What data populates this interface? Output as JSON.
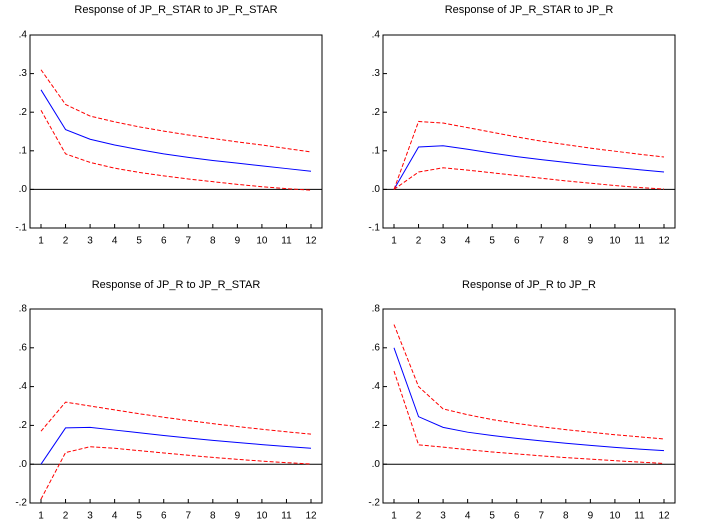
{
  "chart_data": [
    {
      "type": "line",
      "title": "Response of JP_R_STAR to JP_R_STAR",
      "categories": [
        "1",
        "2",
        "3",
        "4",
        "5",
        "6",
        "7",
        "8",
        "9",
        "10",
        "11",
        "12"
      ],
      "ylim": [
        -0.1,
        0.4
      ],
      "yticks": [
        {
          "value": -0.1,
          "label": "-.1"
        },
        {
          "value": 0,
          "label": ".0"
        },
        {
          "value": 0.1,
          "label": ".1"
        },
        {
          "value": 0.2,
          "label": ".2"
        },
        {
          "value": 0.3,
          "label": ".3"
        },
        {
          "value": 0.4,
          "label": ".4"
        }
      ],
      "series": [
        {
          "color": "#0000ff",
          "dashed": false,
          "values": [
            0.258,
            0.155,
            0.13,
            0.115,
            0.103,
            0.092,
            0.083,
            0.075,
            0.068,
            0.061,
            0.054,
            0.047
          ]
        },
        {
          "color": "#ff0000",
          "dashed": true,
          "values": [
            0.31,
            0.22,
            0.19,
            0.175,
            0.162,
            0.151,
            0.141,
            0.132,
            0.123,
            0.115,
            0.106,
            0.097
          ]
        },
        {
          "color": "#ff0000",
          "dashed": true,
          "values": [
            0.205,
            0.092,
            0.07,
            0.055,
            0.044,
            0.035,
            0.027,
            0.02,
            0.013,
            0.007,
            0.002,
            -0.002
          ]
        }
      ]
    },
    {
      "type": "line",
      "title": "Response of JP_R_STAR to JP_R",
      "categories": [
        "1",
        "2",
        "3",
        "4",
        "5",
        "6",
        "7",
        "8",
        "9",
        "10",
        "11",
        "12"
      ],
      "ylim": [
        -0.1,
        0.4
      ],
      "yticks": [
        {
          "value": -0.1,
          "label": "-.1"
        },
        {
          "value": 0,
          "label": ".0"
        },
        {
          "value": 0.1,
          "label": ".1"
        },
        {
          "value": 0.2,
          "label": ".2"
        },
        {
          "value": 0.3,
          "label": ".3"
        },
        {
          "value": 0.4,
          "label": ".4"
        }
      ],
      "series": [
        {
          "color": "#0000ff",
          "dashed": false,
          "values": [
            0,
            0.11,
            0.113,
            0.104,
            0.094,
            0.085,
            0.077,
            0.07,
            0.063,
            0.057,
            0.051,
            0.045
          ]
        },
        {
          "color": "#ff0000",
          "dashed": true,
          "values": [
            0,
            0.176,
            0.172,
            0.16,
            0.148,
            0.136,
            0.125,
            0.116,
            0.107,
            0.099,
            0.091,
            0.084
          ]
        },
        {
          "color": "#ff0000",
          "dashed": true,
          "values": [
            0,
            0.045,
            0.056,
            0.05,
            0.043,
            0.036,
            0.029,
            0.022,
            0.016,
            0.01,
            0.005,
            0.001
          ]
        }
      ]
    },
    {
      "type": "line",
      "title": "Response of JP_R to JP_R_STAR",
      "categories": [
        "1",
        "2",
        "3",
        "4",
        "5",
        "6",
        "7",
        "8",
        "9",
        "10",
        "11",
        "12"
      ],
      "ylim": [
        -0.2,
        0.8
      ],
      "yticks": [
        {
          "value": -0.2,
          "label": "-.2"
        },
        {
          "value": 0,
          "label": ".0"
        },
        {
          "value": 0.2,
          "label": ".2"
        },
        {
          "value": 0.4,
          "label": ".4"
        },
        {
          "value": 0.6,
          "label": ".6"
        },
        {
          "value": 0.8,
          "label": ".8"
        }
      ],
      "series": [
        {
          "color": "#0000ff",
          "dashed": false,
          "values": [
            0,
            0.187,
            0.19,
            0.176,
            0.162,
            0.148,
            0.135,
            0.123,
            0.112,
            0.101,
            0.091,
            0.082
          ]
        },
        {
          "color": "#ff0000",
          "dashed": true,
          "values": [
            0.17,
            0.32,
            0.3,
            0.28,
            0.26,
            0.242,
            0.225,
            0.209,
            0.194,
            0.18,
            0.167,
            0.155
          ]
        },
        {
          "color": "#ff0000",
          "dashed": true,
          "values": [
            -0.18,
            0.06,
            0.09,
            0.082,
            0.07,
            0.058,
            0.046,
            0.035,
            0.025,
            0.016,
            0.008,
            0.001
          ]
        }
      ]
    },
    {
      "type": "line",
      "title": "Response of JP_R to JP_R",
      "categories": [
        "1",
        "2",
        "3",
        "4",
        "5",
        "6",
        "7",
        "8",
        "9",
        "10",
        "11",
        "12"
      ],
      "ylim": [
        -0.2,
        0.8
      ],
      "yticks": [
        {
          "value": -0.2,
          "label": "-.2"
        },
        {
          "value": 0,
          "label": ".0"
        },
        {
          "value": 0.2,
          "label": ".2"
        },
        {
          "value": 0.4,
          "label": ".4"
        },
        {
          "value": 0.6,
          "label": ".6"
        },
        {
          "value": 0.8,
          "label": ".8"
        }
      ],
      "series": [
        {
          "color": "#0000ff",
          "dashed": false,
          "values": [
            0.6,
            0.245,
            0.19,
            0.165,
            0.148,
            0.133,
            0.12,
            0.108,
            0.097,
            0.087,
            0.078,
            0.07
          ]
        },
        {
          "color": "#ff0000",
          "dashed": true,
          "values": [
            0.72,
            0.4,
            0.285,
            0.255,
            0.23,
            0.21,
            0.193,
            0.178,
            0.165,
            0.152,
            0.141,
            0.13
          ]
        },
        {
          "color": "#ff0000",
          "dashed": true,
          "values": [
            0.48,
            0.1,
            0.088,
            0.075,
            0.063,
            0.053,
            0.043,
            0.034,
            0.026,
            0.018,
            0.011,
            0.004
          ]
        }
      ]
    }
  ]
}
